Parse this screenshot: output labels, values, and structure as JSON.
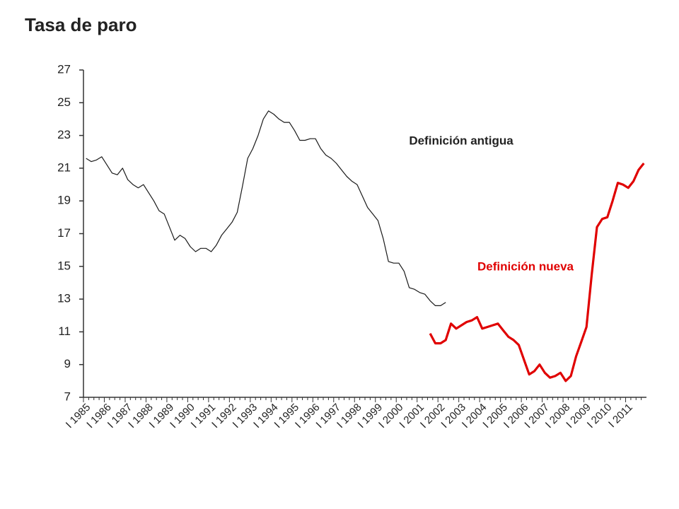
{
  "chart_data": {
    "type": "line",
    "title": "Tasa de paro",
    "categories": [
      "I 1985",
      null,
      null,
      null,
      "I 1986",
      null,
      null,
      null,
      "I 1987",
      null,
      null,
      null,
      "I 1988",
      null,
      null,
      null,
      "I 1989",
      null,
      null,
      null,
      "I 1990",
      null,
      null,
      null,
      "I 1991",
      null,
      null,
      null,
      "I 1992",
      null,
      null,
      null,
      "I 1993",
      null,
      null,
      null,
      "I 1994",
      null,
      null,
      null,
      "I 1995",
      null,
      null,
      null,
      "I 1996",
      null,
      null,
      null,
      "I 1997",
      null,
      null,
      null,
      "I 1998",
      null,
      null,
      null,
      "I 1999",
      null,
      null,
      null,
      "I 2000",
      null,
      null,
      null,
      "I 2001",
      null,
      null,
      null,
      "I 2002",
      null,
      null,
      null,
      "I 2003",
      null,
      null,
      null,
      "I 2004",
      null,
      null,
      null,
      "I 2005",
      null,
      null,
      null,
      "I 2006",
      null,
      null,
      null,
      "I 2007",
      null,
      null,
      null,
      "I 2008",
      null,
      null,
      null,
      "I 2009",
      null,
      null,
      null,
      "I 2010",
      null,
      null,
      null,
      "I 2011",
      null,
      null,
      null
    ],
    "series": [
      {
        "name": "Definición antigua",
        "color": "#1a1a1a",
        "width": 1.2,
        "values": [
          21.6,
          21.4,
          21.5,
          21.7,
          21.2,
          20.7,
          20.6,
          21.0,
          20.3,
          20.0,
          19.8,
          20.0,
          19.5,
          19.0,
          18.4,
          18.2,
          17.4,
          16.6,
          16.9,
          16.7,
          16.2,
          15.9,
          16.1,
          16.1,
          15.9,
          16.3,
          16.9,
          17.3,
          17.7,
          18.3,
          19.9,
          21.6,
          22.2,
          23.0,
          24.0,
          24.5,
          24.3,
          24.0,
          23.8,
          23.8,
          23.3,
          22.7,
          22.7,
          22.8,
          22.8,
          22.2,
          21.8,
          21.6,
          21.3,
          20.9,
          20.5,
          20.2,
          20.0,
          19.3,
          18.6,
          18.2,
          17.8,
          16.7,
          15.3,
          15.2,
          15.2,
          14.7,
          13.7,
          13.6,
          13.4,
          13.3,
          12.9,
          12.6,
          12.6,
          12.8,
          null,
          null,
          null,
          null,
          null,
          null,
          null,
          null,
          null,
          null,
          null,
          null,
          null,
          null,
          null,
          null,
          null,
          null,
          null,
          null,
          null,
          null,
          null,
          null,
          null,
          null,
          null,
          null,
          null,
          null,
          null,
          null,
          null,
          null,
          null,
          null,
          null,
          null
        ]
      },
      {
        "name": "Definición nueva",
        "color": "#e00000",
        "width": 3.2,
        "values": [
          null,
          null,
          null,
          null,
          null,
          null,
          null,
          null,
          null,
          null,
          null,
          null,
          null,
          null,
          null,
          null,
          null,
          null,
          null,
          null,
          null,
          null,
          null,
          null,
          null,
          null,
          null,
          null,
          null,
          null,
          null,
          null,
          null,
          null,
          null,
          null,
          null,
          null,
          null,
          null,
          null,
          null,
          null,
          null,
          null,
          null,
          null,
          null,
          null,
          null,
          null,
          null,
          null,
          null,
          null,
          null,
          null,
          null,
          null,
          null,
          null,
          null,
          null,
          null,
          null,
          null,
          10.9,
          10.3,
          10.3,
          10.5,
          11.5,
          11.2,
          11.4,
          11.6,
          11.7,
          11.9,
          11.2,
          11.3,
          11.4,
          11.5,
          11.1,
          10.7,
          10.5,
          10.2,
          9.3,
          8.4,
          8.6,
          9.0,
          8.5,
          8.2,
          8.3,
          8.5,
          8.0,
          8.3,
          9.5,
          10.4,
          11.3,
          14.5,
          17.4,
          17.9,
          18.0,
          19.0,
          20.1,
          20.0,
          19.8,
          20.2,
          20.9,
          21.3
        ]
      }
    ],
    "ylim": [
      7,
      27
    ],
    "yticks": [
      7,
      9,
      11,
      13,
      15,
      17,
      19,
      21,
      23,
      25,
      27
    ]
  }
}
